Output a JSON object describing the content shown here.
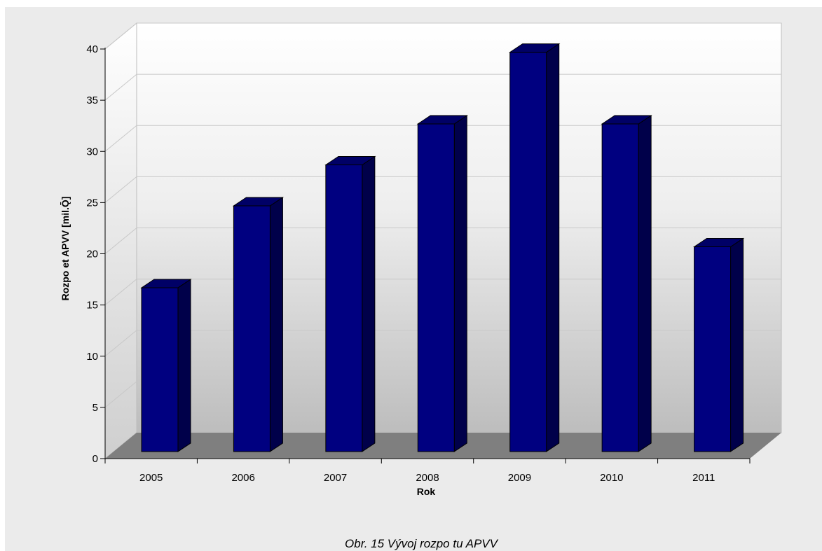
{
  "chart_data": {
    "type": "bar",
    "style": "3d",
    "categories": [
      "2005",
      "2006",
      "2007",
      "2008",
      "2009",
      "2010",
      "2011"
    ],
    "values": [
      16,
      24,
      28,
      32,
      39,
      32,
      20
    ],
    "xlabel": "Rok",
    "ylabel": "Rozpo et APVV  [mil.Ǭ]",
    "ylim": [
      0,
      40
    ],
    "yticks": [
      0,
      5,
      10,
      15,
      20,
      25,
      30,
      35,
      40
    ],
    "grid": true,
    "legend": "none",
    "colors": {
      "bar_front": "#000080",
      "bar_top": "#000066",
      "bar_side": "#00004a",
      "floor": "#7f7f7f"
    }
  },
  "caption": "Obr. 15  Vývoj rozpo  tu APVV"
}
